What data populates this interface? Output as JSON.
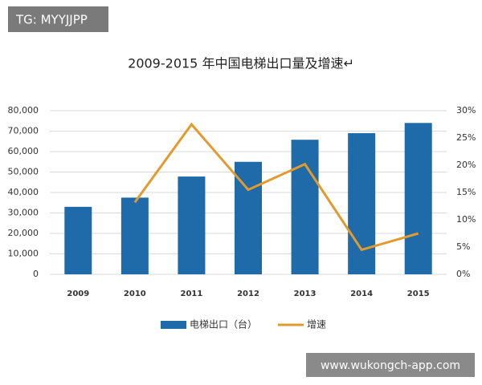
{
  "chart_data": {
    "type": "bar_line",
    "title": "2009-2015 年中国电梯出口量及增速↵",
    "categories": [
      "2009",
      "2010",
      "2011",
      "2012",
      "2013",
      "2014",
      "2015"
    ],
    "series": [
      {
        "name": "电梯出口（台）",
        "type": "bar",
        "color": "#1f6aa8",
        "values": [
          33000,
          37500,
          47800,
          55000,
          65800,
          69000,
          74000
        ]
      },
      {
        "name": "增速",
        "type": "line",
        "axis": "y2",
        "color": "#e39a2c",
        "values": [
          null,
          13.2,
          27.5,
          15.5,
          20.2,
          4.5,
          7.5
        ]
      }
    ],
    "ylim": [
      0,
      80000
    ],
    "yticks": [
      0,
      {
        "value": 10000,
        "label": "10,000"
      },
      {
        "value": 20000,
        "label": "20,000"
      },
      {
        "value": 30000,
        "label": "30,000"
      },
      {
        "value": 40000,
        "label": "40,000"
      },
      {
        "value": 50000,
        "label": "50,000"
      },
      {
        "value": 60000,
        "label": "60,000"
      },
      {
        "value": 70000,
        "label": "70,000"
      },
      {
        "value": 80000,
        "label": "80,000"
      }
    ],
    "y2lim": [
      0,
      30
    ],
    "y2ticks": [
      {
        "value": 0,
        "label": "0%"
      },
      {
        "value": 5,
        "label": "5%"
      },
      {
        "value": 10,
        "label": "10%"
      },
      {
        "value": 15,
        "label": "15%"
      },
      {
        "value": 20,
        "label": "20%"
      },
      {
        "value": 25,
        "label": "25%"
      },
      {
        "value": 30,
        "label": "30%"
      }
    ],
    "grid": true,
    "legend": "bottom"
  },
  "watermarks": [
    "TG: MYYJJPP",
    "www.wukongch-app.com"
  ]
}
